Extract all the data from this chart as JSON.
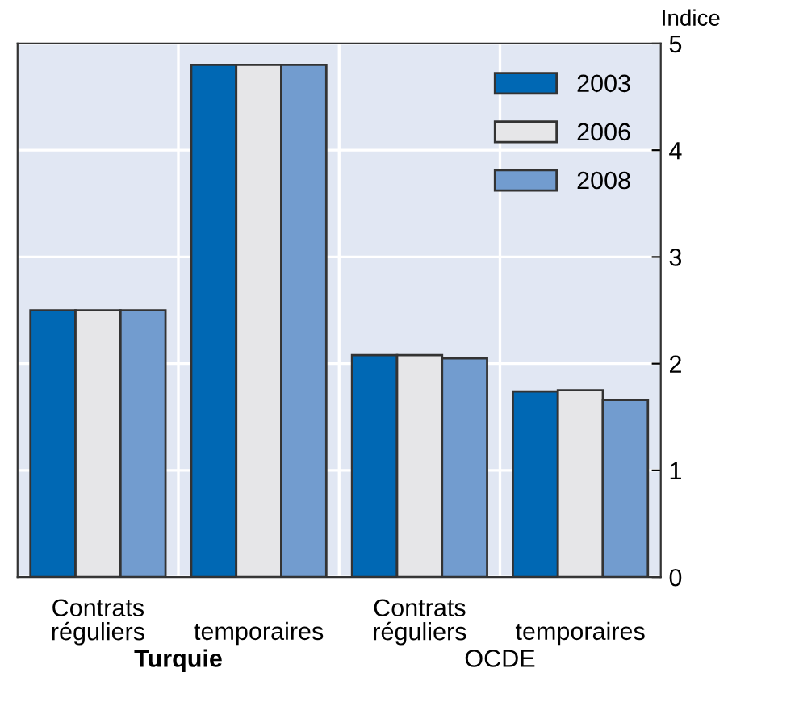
{
  "chart_data": {
    "type": "bar",
    "ylabel": "Indice",
    "categories": [
      "réguliers",
      "temporaires",
      "réguliers",
      "temporaires"
    ],
    "series": [
      {
        "name": "2003",
        "color": "#0068b4",
        "values": [
          2.5,
          4.8,
          2.08,
          1.74
        ]
      },
      {
        "name": "2006",
        "color": "#e6e6e8",
        "values": [
          2.5,
          4.8,
          2.08,
          1.75
        ]
      },
      {
        "name": "2008",
        "color": "#729ccf",
        "values": [
          2.5,
          4.8,
          2.05,
          1.66
        ]
      }
    ],
    "annotations": [
      "Contrats",
      "Contrats",
      "Turquie",
      "OCDE"
    ],
    "ylim": [
      0,
      5
    ],
    "yticks": [
      0,
      1,
      2,
      3,
      4,
      5
    ],
    "grid": true,
    "legend": "top right"
  }
}
